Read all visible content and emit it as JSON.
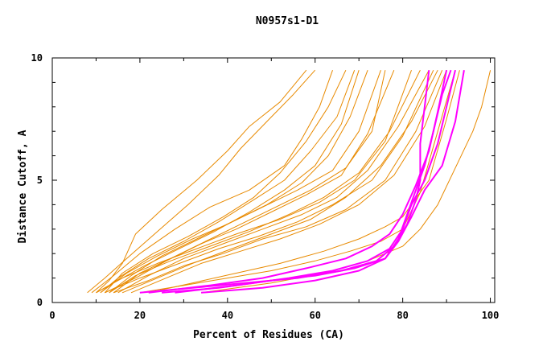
{
  "chart_data": {
    "type": "line",
    "title": "N0957s1-D1",
    "xlabel": "Percent of Residues (CA)",
    "ylabel": "Distance Cutoff, A",
    "xlim": [
      0,
      101
    ],
    "ylim": [
      0,
      10
    ],
    "x_ticks": [
      0,
      20,
      40,
      60,
      80,
      100
    ],
    "y_ticks": [
      0,
      5,
      10
    ],
    "grid": false,
    "legend": "none",
    "colors": {
      "orange": "#e88a00",
      "magenta": "#ff00ff",
      "axis": "#000000"
    },
    "series": [
      {
        "color": "orange",
        "points": [
          [
            10,
            0.4
          ],
          [
            13,
            0.9
          ],
          [
            16,
            1.6
          ],
          [
            19,
            2.8
          ],
          [
            25,
            3.8
          ],
          [
            33,
            5.0
          ],
          [
            40,
            6.2
          ],
          [
            45,
            7.2
          ],
          [
            52,
            8.2
          ],
          [
            58,
            9.5
          ]
        ]
      },
      {
        "color": "orange",
        "points": [
          [
            8,
            0.4
          ],
          [
            12,
            1.0
          ],
          [
            17,
            1.8
          ],
          [
            24,
            2.9
          ],
          [
            31,
            4.0
          ],
          [
            38,
            5.2
          ],
          [
            43,
            6.3
          ],
          [
            49,
            7.4
          ],
          [
            55,
            8.5
          ],
          [
            60,
            9.5
          ]
        ]
      },
      {
        "color": "orange",
        "points": [
          [
            9,
            0.4
          ],
          [
            14,
            1.1
          ],
          [
            20,
            2.0
          ],
          [
            28,
            3.0
          ],
          [
            36,
            3.9
          ],
          [
            45,
            4.6
          ],
          [
            53,
            5.6
          ],
          [
            57,
            6.7
          ],
          [
            61,
            8.0
          ],
          [
            64,
            9.5
          ]
        ]
      },
      {
        "color": "orange",
        "points": [
          [
            11,
            0.4
          ],
          [
            15,
            1.0
          ],
          [
            22,
            1.8
          ],
          [
            30,
            2.5
          ],
          [
            38,
            3.3
          ],
          [
            46,
            4.2
          ],
          [
            53,
            5.0
          ],
          [
            59,
            6.2
          ],
          [
            65,
            7.6
          ],
          [
            69,
            9.5
          ]
        ]
      },
      {
        "color": "orange",
        "points": [
          [
            12,
            0.4
          ],
          [
            16,
            1.2
          ],
          [
            23,
            2.0
          ],
          [
            31,
            2.7
          ],
          [
            39,
            3.5
          ],
          [
            46,
            4.3
          ],
          [
            52,
            5.3
          ],
          [
            58,
            6.6
          ],
          [
            63,
            8.0
          ],
          [
            67,
            9.5
          ]
        ]
      },
      {
        "color": "orange",
        "points": [
          [
            10,
            0.4
          ],
          [
            14,
            0.8
          ],
          [
            21,
            1.5
          ],
          [
            29,
            2.2
          ],
          [
            37,
            2.9
          ],
          [
            45,
            3.7
          ],
          [
            53,
            4.6
          ],
          [
            60,
            5.6
          ],
          [
            66,
            7.3
          ],
          [
            70,
            9.5
          ]
        ]
      },
      {
        "color": "orange",
        "points": [
          [
            13,
            0.4
          ],
          [
            18,
            1.1
          ],
          [
            25,
            1.9
          ],
          [
            33,
            2.6
          ],
          [
            41,
            3.3
          ],
          [
            49,
            4.0
          ],
          [
            57,
            4.9
          ],
          [
            63,
            6.0
          ],
          [
            68,
            7.6
          ],
          [
            72,
            9.5
          ]
        ]
      },
      {
        "color": "orange",
        "points": [
          [
            11,
            0.4
          ],
          [
            17,
            1.2
          ],
          [
            24,
            1.9
          ],
          [
            32,
            2.6
          ],
          [
            40,
            3.2
          ],
          [
            48,
            3.9
          ],
          [
            56,
            4.6
          ],
          [
            64,
            5.4
          ],
          [
            70,
            7.0
          ],
          [
            75,
            9.5
          ]
        ]
      },
      {
        "color": "orange",
        "points": [
          [
            12,
            0.4
          ],
          [
            19,
            1.0
          ],
          [
            26,
            1.7
          ],
          [
            34,
            2.4
          ],
          [
            42,
            3.0
          ],
          [
            50,
            3.7
          ],
          [
            58,
            4.4
          ],
          [
            66,
            5.2
          ],
          [
            72,
            6.9
          ],
          [
            78,
            9.5
          ]
        ]
      },
      {
        "color": "orange",
        "points": [
          [
            14,
            0.4
          ],
          [
            20,
            1.2
          ],
          [
            27,
            1.8
          ],
          [
            35,
            2.5
          ],
          [
            43,
            3.2
          ],
          [
            51,
            3.9
          ],
          [
            59,
            4.6
          ],
          [
            67,
            5.5
          ],
          [
            73,
            7.0
          ],
          [
            76,
            9.5
          ]
        ]
      },
      {
        "color": "orange",
        "points": [
          [
            10,
            0.4
          ],
          [
            16,
            1.0
          ],
          [
            24,
            1.6
          ],
          [
            33,
            2.2
          ],
          [
            42,
            2.8
          ],
          [
            52,
            3.4
          ],
          [
            61,
            4.1
          ],
          [
            69,
            5.0
          ],
          [
            76,
            6.6
          ],
          [
            82,
            9.5
          ]
        ]
      },
      {
        "color": "orange",
        "points": [
          [
            13,
            0.4
          ],
          [
            19,
            1.1
          ],
          [
            27,
            1.7
          ],
          [
            36,
            2.3
          ],
          [
            45,
            2.9
          ],
          [
            54,
            3.6
          ],
          [
            62,
            4.3
          ],
          [
            70,
            5.3
          ],
          [
            77,
            7.0
          ],
          [
            84,
            9.5
          ]
        ]
      },
      {
        "color": "orange",
        "points": [
          [
            15,
            0.4
          ],
          [
            22,
            1.1
          ],
          [
            30,
            1.8
          ],
          [
            39,
            2.4
          ],
          [
            48,
            3.0
          ],
          [
            57,
            3.6
          ],
          [
            65,
            4.3
          ],
          [
            72,
            5.4
          ],
          [
            79,
            7.2
          ],
          [
            86,
            9.5
          ]
        ]
      },
      {
        "color": "orange",
        "points": [
          [
            12,
            0.4
          ],
          [
            20,
            1.0
          ],
          [
            29,
            1.6
          ],
          [
            38,
            2.2
          ],
          [
            47,
            2.7
          ],
          [
            56,
            3.3
          ],
          [
            64,
            4.0
          ],
          [
            73,
            5.0
          ],
          [
            80,
            6.8
          ],
          [
            87,
            9.5
          ]
        ]
      },
      {
        "color": "orange",
        "points": [
          [
            16,
            0.4
          ],
          [
            24,
            1.0
          ],
          [
            32,
            1.6
          ],
          [
            41,
            2.2
          ],
          [
            50,
            2.8
          ],
          [
            59,
            3.4
          ],
          [
            67,
            4.3
          ],
          [
            75,
            5.6
          ],
          [
            82,
            7.4
          ],
          [
            88,
            9.5
          ]
        ]
      },
      {
        "color": "orange",
        "points": [
          [
            14,
            0.4
          ],
          [
            22,
            0.9
          ],
          [
            30,
            1.5
          ],
          [
            39,
            2.0
          ],
          [
            48,
            2.6
          ],
          [
            58,
            3.1
          ],
          [
            67,
            3.8
          ],
          [
            76,
            5.0
          ],
          [
            83,
            7.0
          ],
          [
            89,
            9.5
          ]
        ]
      },
      {
        "color": "orange",
        "points": [
          [
            18,
            0.4
          ],
          [
            26,
            1.0
          ],
          [
            34,
            1.6
          ],
          [
            43,
            2.1
          ],
          [
            52,
            2.6
          ],
          [
            61,
            3.2
          ],
          [
            70,
            4.0
          ],
          [
            78,
            5.2
          ],
          [
            85,
            7.2
          ],
          [
            90,
            9.5
          ]
        ]
      },
      {
        "color": "orange",
        "points": [
          [
            20,
            0.4
          ],
          [
            30,
            0.7
          ],
          [
            40,
            1.0
          ],
          [
            50,
            1.3
          ],
          [
            60,
            1.7
          ],
          [
            68,
            2.1
          ],
          [
            75,
            2.5
          ],
          [
            80,
            3.0
          ],
          [
            84,
            4.5
          ],
          [
            88,
            7.0
          ],
          [
            92,
            9.5
          ]
        ]
      },
      {
        "color": "orange",
        "points": [
          [
            22,
            0.4
          ],
          [
            32,
            0.8
          ],
          [
            42,
            1.2
          ],
          [
            52,
            1.6
          ],
          [
            62,
            2.1
          ],
          [
            70,
            2.6
          ],
          [
            76,
            3.1
          ],
          [
            80,
            3.5
          ],
          [
            86,
            5.0
          ],
          [
            90,
            7.5
          ],
          [
            93,
            9.5
          ]
        ]
      },
      {
        "color": "orange",
        "points": [
          [
            34,
            0.4
          ],
          [
            50,
            0.8
          ],
          [
            62,
            1.2
          ],
          [
            72,
            1.7
          ],
          [
            80,
            2.3
          ],
          [
            84,
            3.0
          ],
          [
            88,
            4.0
          ],
          [
            92,
            5.5
          ],
          [
            96,
            7.0
          ],
          [
            98,
            8.0
          ],
          [
            100,
            9.5
          ]
        ]
      },
      {
        "color": "magenta",
        "points": [
          [
            20,
            0.4
          ],
          [
            32,
            0.6
          ],
          [
            44,
            0.8
          ],
          [
            56,
            1.0
          ],
          [
            66,
            1.3
          ],
          [
            74,
            1.7
          ],
          [
            78,
            2.3
          ],
          [
            81,
            3.2
          ],
          [
            83,
            4.2
          ],
          [
            84,
            5.0
          ],
          [
            84,
            6.5
          ],
          [
            85,
            8.0
          ],
          [
            86,
            9.5
          ]
        ]
      },
      {
        "color": "magenta",
        "points": [
          [
            25,
            0.4
          ],
          [
            38,
            0.6
          ],
          [
            50,
            0.9
          ],
          [
            60,
            1.1
          ],
          [
            69,
            1.4
          ],
          [
            76,
            1.8
          ],
          [
            79,
            2.6
          ],
          [
            81,
            3.6
          ],
          [
            83,
            4.6
          ],
          [
            85,
            5.6
          ],
          [
            87,
            7.0
          ],
          [
            89,
            8.5
          ],
          [
            91,
            9.5
          ]
        ]
      },
      {
        "color": "magenta",
        "points": [
          [
            28,
            0.4
          ],
          [
            42,
            0.7
          ],
          [
            54,
            1.0
          ],
          [
            64,
            1.3
          ],
          [
            72,
            1.7
          ],
          [
            77,
            2.2
          ],
          [
            80,
            3.0
          ],
          [
            82,
            4.0
          ],
          [
            85,
            5.0
          ],
          [
            88,
            6.5
          ],
          [
            90,
            8.0
          ],
          [
            92,
            9.5
          ]
        ]
      },
      {
        "color": "magenta",
        "points": [
          [
            22,
            0.4
          ],
          [
            36,
            0.7
          ],
          [
            48,
            1.0
          ],
          [
            58,
            1.4
          ],
          [
            67,
            1.8
          ],
          [
            73,
            2.3
          ],
          [
            77,
            2.8
          ],
          [
            80,
            3.6
          ],
          [
            83,
            4.8
          ],
          [
            86,
            6.2
          ],
          [
            88,
            7.8
          ],
          [
            90,
            9.5
          ]
        ]
      },
      {
        "color": "magenta",
        "points": [
          [
            34,
            0.4
          ],
          [
            48,
            0.6
          ],
          [
            60,
            0.9
          ],
          [
            70,
            1.3
          ],
          [
            76,
            1.8
          ],
          [
            79,
            2.5
          ],
          [
            82,
            3.5
          ],
          [
            85,
            4.6
          ],
          [
            89,
            5.6
          ],
          [
            92,
            7.4
          ],
          [
            94,
            9.5
          ]
        ]
      }
    ]
  }
}
